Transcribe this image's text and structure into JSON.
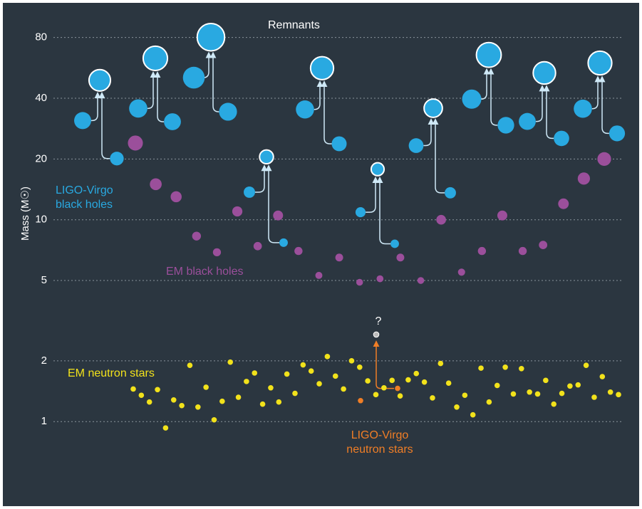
{
  "chart_data": {
    "type": "scatter",
    "ylabel": "Mass (M☉)",
    "log_y": true,
    "ylim": [
      0.4,
      115
    ],
    "yticks": [
      1,
      2,
      5,
      10,
      20,
      40,
      80
    ],
    "grid": true,
    "series": [
      {
        "name": "LIGO-Virgo black holes",
        "color": "#29a9e1",
        "values": [
          31.0,
          20.1,
          35.6,
          30.6,
          50.6,
          34.3,
          13.7,
          7.7,
          35.2,
          23.8,
          10.9,
          7.6,
          23.3,
          13.6,
          39.6,
          29.4,
          30.7,
          25.3,
          35.5,
          26.8
        ]
      },
      {
        "name": "Remnants",
        "color": "#29a9e1",
        "values": [
          49.1,
          63.1,
          80.3,
          20.5,
          56.4,
          17.8,
          35.7,
          65.6,
          53.4,
          59.8
        ]
      },
      {
        "name": "EM black holes",
        "color": "#9b4f9b",
        "values": [
          24,
          15,
          13,
          8.3,
          6.9,
          11,
          7.4,
          10.5,
          7,
          5.3,
          6.5,
          4.9,
          5.1,
          6.5,
          5,
          10,
          5.5,
          7,
          10.5,
          7,
          7.5,
          12,
          16,
          20
        ]
      },
      {
        "name": "EM neutron stars",
        "color": "#f2e21b",
        "values": [
          1.45,
          1.35,
          1.25,
          1.44,
          0.93,
          1.28,
          1.2,
          1.9,
          1.18,
          1.48,
          1.02,
          1.26,
          1.97,
          1.32,
          1.58,
          1.74,
          1.22,
          1.47,
          1.25,
          1.72,
          1.38,
          1.91,
          1.78,
          1.54,
          2.1,
          1.68,
          1.45,
          2.0,
          1.86,
          1.59,
          1.36,
          1.47,
          1.6,
          1.34,
          1.61,
          1.73,
          1.57,
          1.31,
          1.94,
          1.55,
          1.18,
          1.35,
          1.08,
          1.84,
          1.25,
          1.51,
          1.86,
          1.37,
          1.83,
          1.4,
          1.37,
          1.6,
          1.22,
          1.38,
          1.5,
          1.52,
          1.9,
          1.32,
          1.67,
          1.4,
          1.36
        ]
      },
      {
        "name": "LIGO-Virgo neutron stars",
        "color": "#f07e26",
        "values": [
          1.27,
          1.46
        ]
      },
      {
        "name": "?",
        "color": "#bbbbbb",
        "values": [
          2.7
        ]
      }
    ]
  }
}
